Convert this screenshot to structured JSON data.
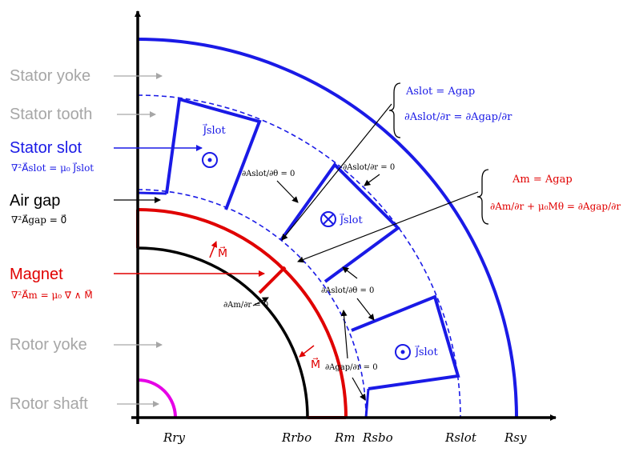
{
  "colors": {
    "stator": "#1a1ae6",
    "magnet": "#e00000",
    "rotor": "#000000",
    "shaft": "#e600e6",
    "gray": "#a6a6a6",
    "text": "#000000"
  },
  "labels": {
    "stator_yoke": "Stator yoke",
    "stator_tooth": "Stator tooth",
    "stator_slot": "Stator slot",
    "air_gap": "Air gap",
    "magnet": "Magnet",
    "rotor_yoke": "Rotor yoke",
    "rotor_shaft": "Rotor shaft"
  },
  "equations": {
    "slot_poisson": "∇²A⃗slot = μ₀ J⃗slot",
    "gap_laplace": "∇²A⃗gap = 0⃗",
    "magnet_poisson": "∇²A⃗m = μ₀ ∇⃗ ∧ M⃗",
    "bc_slot_gap_1": "Aslot = Agap",
    "bc_slot_gap_2": "∂Aslot/∂r = ∂Agap/∂r",
    "bc_m_gap_1": "Am = Agap",
    "bc_m_gap_2": "∂Am/∂r + μ₀Mθ = ∂Agap/∂r"
  },
  "annotations": {
    "j_slot": "J⃗slot",
    "m_vec": "M⃗",
    "dAslot_dtheta": "∂Aslot/∂θ = 0",
    "dAslot_dr": "∂Aslot/∂r = 0",
    "dAm_dr": "∂Am/∂r = 0",
    "dAgap_dr": "∂Agap/∂r = 0"
  },
  "axis_labels": [
    "Rry",
    "Rrbo",
    "Rm",
    "Rsbo",
    "Rslot",
    "Rsy"
  ]
}
